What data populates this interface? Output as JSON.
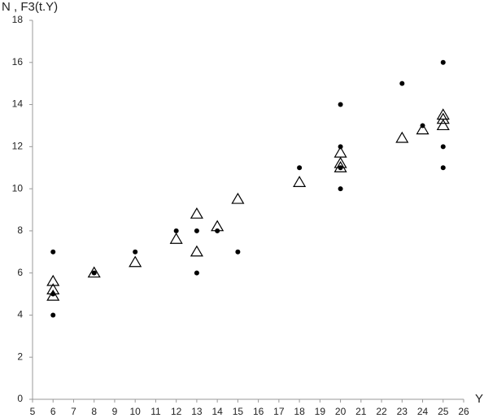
{
  "chart_data": {
    "type": "scatter",
    "ylabel": "N , F3(t.Y)",
    "xlabel": "Y",
    "xlim": [
      5,
      26
    ],
    "xticks": [
      5,
      6,
      7,
      8,
      9,
      10,
      11,
      12,
      13,
      14,
      15,
      16,
      17,
      18,
      19,
      20,
      21,
      22,
      23,
      24,
      25,
      26
    ],
    "ylim": [
      0,
      18
    ],
    "yticks": [
      0,
      2,
      4,
      6,
      8,
      10,
      12,
      14,
      16,
      18
    ],
    "grid": false,
    "series": [
      {
        "marker": "circle",
        "color": "#000000",
        "x": [
          6,
          6,
          6,
          8,
          10,
          12,
          13,
          13,
          14,
          15,
          18,
          20,
          20,
          20,
          20,
          23,
          24,
          25,
          25,
          25
        ],
        "values": [
          7,
          5,
          4,
          6,
          7,
          8,
          8,
          6,
          8,
          7,
          11,
          14,
          12,
          11,
          10,
          15,
          13,
          16,
          12,
          11
        ]
      },
      {
        "marker": "triangle",
        "color": "#000000",
        "x": [
          6,
          6,
          6,
          8,
          10,
          12,
          13,
          13,
          14,
          15,
          18,
          20,
          20,
          20,
          23,
          24,
          25,
          25,
          25
        ],
        "values": [
          5.6,
          5.2,
          4.9,
          6.0,
          6.5,
          7.6,
          8.8,
          7.0,
          8.2,
          9.5,
          10.3,
          11.7,
          11.2,
          11.0,
          12.4,
          12.8,
          13.5,
          13.3,
          13.0
        ]
      }
    ]
  }
}
